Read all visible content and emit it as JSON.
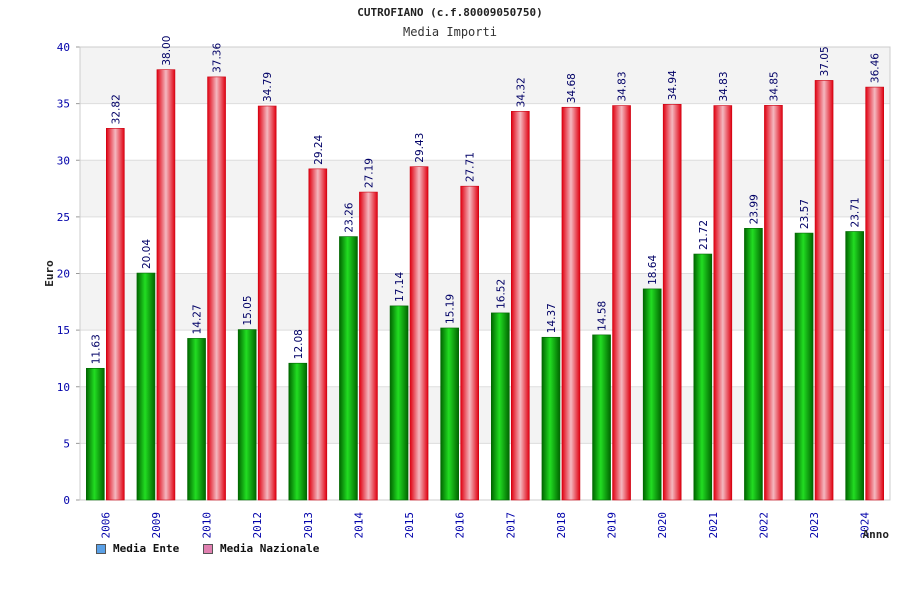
{
  "title": "CUTROFIANO (c.f.80009050750)",
  "subtitle": "Media Importi",
  "colors": {
    "ente": "#00aa00",
    "nazionale": "#ee1c25",
    "legend_ente": "#5aa0e6",
    "legend_nazionale": "#e080b0"
  },
  "legend": {
    "ente_label": "Media Ente",
    "nazionale_label": "Media Nazionale"
  },
  "chart_data": {
    "type": "bar",
    "title": "CUTROFIANO (c.f.80009050750)",
    "subtitle": "Media Importi",
    "xlabel": "Anno",
    "ylabel": "Euro",
    "ylim": [
      0,
      40
    ],
    "yticks": [
      0,
      5,
      10,
      15,
      20,
      25,
      30,
      35,
      40
    ],
    "grid": true,
    "legend_position": "bottom-left",
    "categories": [
      "2006",
      "2009",
      "2010",
      "2012",
      "2013",
      "2014",
      "2015",
      "2016",
      "2017",
      "2018",
      "2019",
      "2020",
      "2021",
      "2022",
      "2023",
      "2024"
    ],
    "series": [
      {
        "name": "Media Ente",
        "values": [
          11.63,
          20.04,
          14.27,
          15.05,
          12.08,
          23.26,
          17.14,
          15.19,
          16.52,
          14.37,
          14.58,
          18.64,
          21.72,
          23.99,
          23.57,
          23.71
        ],
        "labels": [
          "11.63",
          "20.04",
          "14.27",
          "15.05",
          "12.08",
          "23.26",
          "17.14",
          "15.19",
          "16.52",
          "14.37",
          "14.58",
          "18.64",
          "21.72",
          "23.99",
          "23.57",
          "23.71"
        ]
      },
      {
        "name": "Media Nazionale",
        "values": [
          32.82,
          38.0,
          37.36,
          34.79,
          29.24,
          27.19,
          29.43,
          27.71,
          34.32,
          34.68,
          34.83,
          34.94,
          34.83,
          34.85,
          37.05,
          36.46
        ],
        "labels": [
          "32.82",
          "38.00",
          "37.36",
          "34.79",
          "29.24",
          "27.19",
          "29.43",
          "27.71",
          "34.32",
          "34.68",
          "34.83",
          "34.94",
          "34.83",
          "34.85",
          "37.05",
          "36.46"
        ]
      }
    ]
  }
}
